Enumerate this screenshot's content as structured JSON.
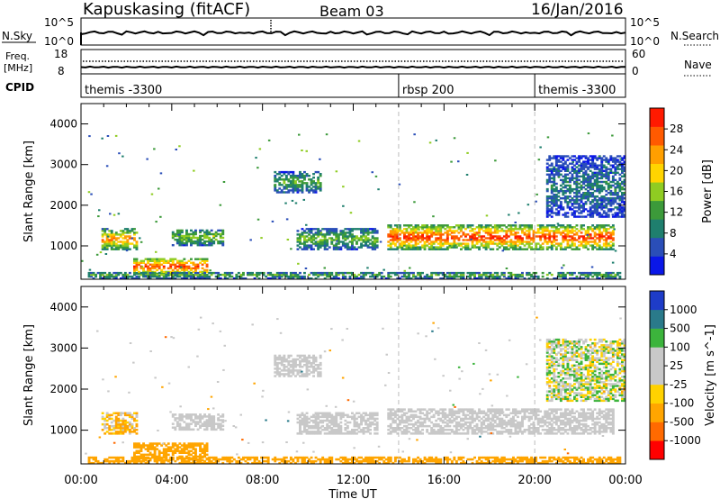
{
  "header": {
    "station": "Kapuskasing (fitACF)",
    "beam": "Beam 03",
    "date": "16/Jan/2016"
  },
  "strips": {
    "nsky_label": "N.Sky",
    "nsky_ticks": [
      "10^5",
      "10^0"
    ],
    "nsky_right_ticks": [
      "10^5",
      "10^0"
    ],
    "nsearch_label": "N.Search",
    "freq_label": "Freq.",
    "freq_unit": "[MHz]",
    "freq_ticks": [
      "18",
      "8"
    ],
    "nave_label": "Nave",
    "nave_ticks": [
      "60",
      "0"
    ],
    "cpid_label": "CPID",
    "cpid_segments": [
      {
        "label": "themis -3300",
        "start": 0
      },
      {
        "label": "rbsp 200",
        "start": 14
      },
      {
        "label": "themis -3300",
        "start": 20
      }
    ]
  },
  "chart_data": [
    {
      "type": "heatmap",
      "title": "",
      "xlabel": "Time UT",
      "ylabel": "Slant Range [km]",
      "xlim": [
        0,
        24
      ],
      "ylim": [
        180,
        4500
      ],
      "x_ticks": [
        "00:00",
        "04:00",
        "08:00",
        "12:00",
        "16:00",
        "20:00",
        "00:00"
      ],
      "y_ticks": [
        "1000",
        "2000",
        "3000",
        "4000"
      ],
      "y_tick_values": [
        1000,
        2000,
        3000,
        4000
      ],
      "colorbar_label": "Power [dB]",
      "colorbar_ticks": [
        "28",
        "24",
        "20",
        "16",
        "12",
        "8",
        "4"
      ],
      "colorbar_range": [
        0,
        30
      ],
      "colors": [
        "#0a17e8",
        "#2a4eb8",
        "#1f7f6e",
        "#3c9a3a",
        "#8fcc22",
        "#ffd400",
        "#ff9f00",
        "#ff5a00",
        "#ff1a00"
      ],
      "regions": [
        {
          "t0": 0.9,
          "t1": 2.5,
          "r0": 900,
          "r1": 1400,
          "value": 17
        },
        {
          "t0": 2.3,
          "t1": 5.5,
          "r0": 250,
          "r1": 700,
          "value": 19
        },
        {
          "t0": 4.0,
          "t1": 6.2,
          "r0": 1000,
          "r1": 1400,
          "value": 11
        },
        {
          "t0": 8.5,
          "t1": 10.5,
          "r0": 2300,
          "r1": 2800,
          "value": 9
        },
        {
          "t0": 9.5,
          "t1": 13.0,
          "r0": 900,
          "r1": 1400,
          "value": 10
        },
        {
          "t0": 13.5,
          "t1": 23.5,
          "r0": 900,
          "r1": 1500,
          "value": 20
        },
        {
          "t0": 0.3,
          "t1": 23.8,
          "r0": 180,
          "r1": 350,
          "value": 9
        },
        {
          "t0": 20.5,
          "t1": 24.0,
          "r0": 1700,
          "r1": 3200,
          "value": 6
        }
      ]
    },
    {
      "type": "heatmap",
      "title": "",
      "xlabel": "Time UT",
      "ylabel": "Slant Range [km]",
      "xlim": [
        0,
        24
      ],
      "ylim": [
        180,
        4500
      ],
      "x_ticks": [
        "00:00",
        "04:00",
        "08:00",
        "12:00",
        "16:00",
        "20:00",
        "00:00"
      ],
      "y_ticks": [
        "1000",
        "2000",
        "3000",
        "4000"
      ],
      "y_tick_values": [
        1000,
        2000,
        3000,
        4000
      ],
      "colorbar_label": "Velocity [m s^-1]",
      "colorbar_ticks": [
        "1000",
        "500",
        "100",
        "25",
        "-25",
        "-100",
        "-500",
        "-1000"
      ],
      "colors": [
        "#ff0000",
        "#ff6a00",
        "#ffa500",
        "#ffd200",
        "#c8c8c8",
        "#c8c8c8",
        "#3cb43c",
        "#2a7a8a",
        "#1e3cc8"
      ],
      "regions": [
        {
          "t0": 0.9,
          "t1": 2.5,
          "r0": 900,
          "r1": 1400,
          "value": -120
        },
        {
          "t0": 2.3,
          "t1": 5.5,
          "r0": 250,
          "r1": 700,
          "value": -300
        },
        {
          "t0": 4.0,
          "t1": 6.2,
          "r0": 1000,
          "r1": 1400,
          "value": 0
        },
        {
          "t0": 8.5,
          "t1": 10.5,
          "r0": 2300,
          "r1": 2800,
          "value": 0
        },
        {
          "t0": 9.5,
          "t1": 13.0,
          "r0": 900,
          "r1": 1400,
          "value": 0
        },
        {
          "t0": 13.5,
          "t1": 23.5,
          "r0": 900,
          "r1": 1500,
          "value": 0
        },
        {
          "t0": 0.3,
          "t1": 23.8,
          "r0": 180,
          "r1": 350,
          "value": -250
        },
        {
          "t0": 20.5,
          "t1": 24.0,
          "r0": 1700,
          "r1": 3200,
          "value": 40
        }
      ]
    }
  ]
}
